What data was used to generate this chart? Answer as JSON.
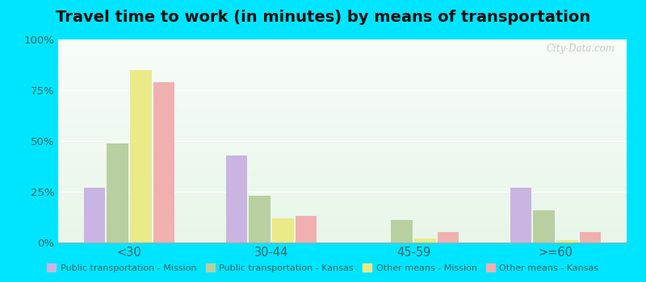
{
  "title": "Travel time to work (in minutes) by means of transportation",
  "categories": [
    "<30",
    "30-44",
    "45-59",
    ">=60"
  ],
  "series": {
    "Public transportation - Mission": [
      27,
      43,
      0,
      27
    ],
    "Public transportation - Kansas": [
      49,
      23,
      11,
      16
    ],
    "Other means - Mission": [
      85,
      12,
      2,
      1
    ],
    "Other means - Kansas": [
      79,
      13,
      5,
      5
    ]
  },
  "colors": {
    "Public transportation - Mission": "#c9b4e2",
    "Public transportation - Kansas": "#b8cfa0",
    "Other means - Mission": "#eaea88",
    "Other means - Kansas": "#f0b0b0"
  },
  "ylim": [
    0,
    100
  ],
  "yticks": [
    0,
    25,
    50,
    75,
    100
  ],
  "ytick_labels": [
    "0%",
    "25%",
    "50%",
    "75%",
    "100%"
  ],
  "outer_background": "#00e5ff",
  "title_fontsize": 14,
  "watermark": "City-Data.com"
}
